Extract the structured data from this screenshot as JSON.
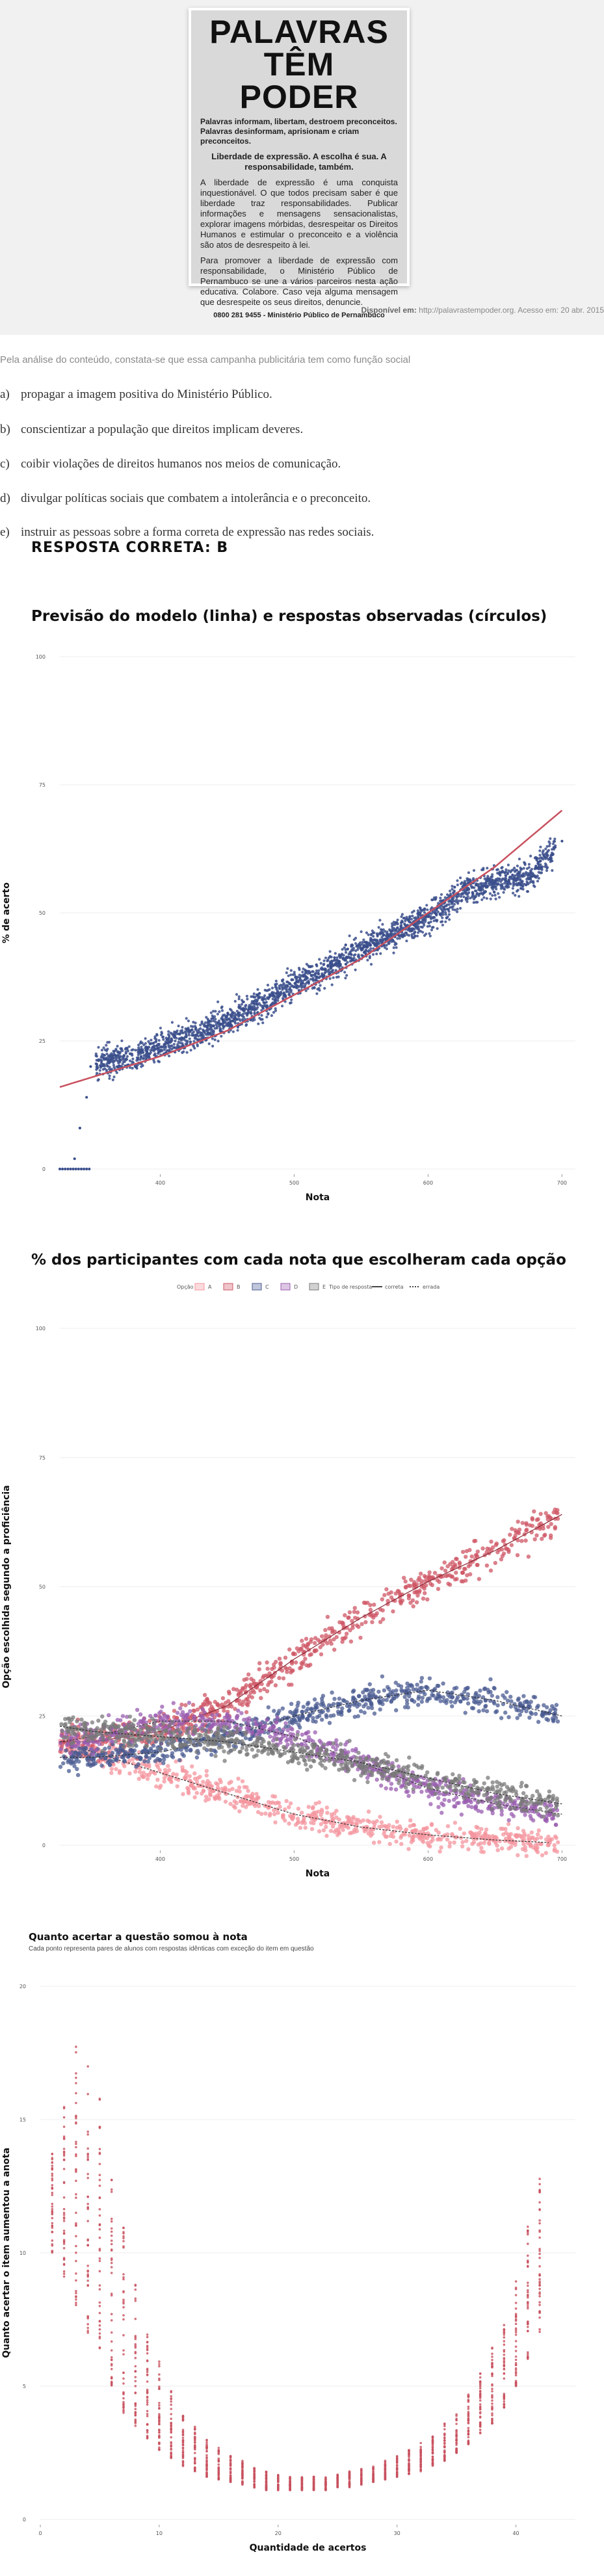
{
  "poster": {
    "headline_1": "PALAVRAS",
    "headline_2": "TÊM PODER",
    "tagline": "Palavras informam, libertam, destroem preconceitos. Palavras desinformam, aprisionam e criam preconceitos.",
    "emphasis": "Liberdade de expressão. A escolha é sua. A responsabilidade, também.",
    "body_1": "A liberdade de expressão é uma conquista inquestionável. O que todos precisam saber é que liberdade traz responsabilidades. Publicar informações e mensagens sensacionalistas, explorar imagens mórbidas, desrespeitar os Direitos Humanos e estimular o preconceito e a violência são atos de desrespeito à lei.",
    "body_2": "Para promover a liberdade de expressão com responsabilidade, o Ministério Público de Pernambuco se une a vários parceiros nesta ação educativa. Colabore. Caso veja alguma mensagem que desrespeite os seus direitos, denuncie.",
    "footer": "0800 281 9455 - Ministério Público de Pernambuco"
  },
  "source": {
    "label": "Disponível em:",
    "text": "http://palavrastempoder.org. Acesso em: 20 abr. 2015"
  },
  "question": {
    "intro": "Pela análise do conteúdo, constata-se que essa campanha publicitária tem como função social",
    "options": [
      {
        "letter": "a)",
        "text": "propagar a imagem positiva do Ministério Público."
      },
      {
        "letter": "b)",
        "text": "conscientizar a população que direitos implicam deveres."
      },
      {
        "letter": "c)",
        "text": "coibir violações de direitos humanos nos meios de comunicação."
      },
      {
        "letter": "d)",
        "text": "divulgar políticas sociais que combatem a intolerância e o preconceito."
      },
      {
        "letter": "e)",
        "text": "instruir as pessoas sobre a forma correta de expressão nas redes sociais."
      }
    ],
    "answer": "RESPOSTA CORRETA: B"
  },
  "chart_data": [
    {
      "type": "scatter",
      "title": "Previsão do modelo (linha) e respostas observadas (círculos)",
      "xlabel": "Nota",
      "ylabel": "% de acerto",
      "x_ticks": [
        400,
        500,
        600,
        700
      ],
      "y_ticks": [
        0,
        25,
        50,
        75,
        100
      ],
      "xlim": [
        325,
        710
      ],
      "ylim": [
        0,
        100
      ],
      "point_color": "#3b4f8c",
      "line_color": "#c8505e",
      "model_line": {
        "x": [
          325,
          400,
          450,
          500,
          550,
          600,
          650,
          700
        ],
        "y": [
          16,
          22,
          27,
          34,
          41,
          50,
          59,
          70
        ]
      },
      "observed_points": {
        "x": [
          325,
          330,
          335,
          340,
          345,
          350,
          360,
          380,
          400,
          425,
          450,
          475,
          500,
          525,
          550,
          575,
          600,
          625,
          650,
          675,
          700
        ],
        "y": [
          0,
          0,
          2,
          8,
          14,
          20,
          21,
          22,
          24,
          26,
          29,
          32,
          36,
          39,
          43,
          46,
          49,
          54,
          56,
          57,
          64
        ]
      }
    },
    {
      "type": "scatter",
      "title": "% dos participantes com cada nota que escolheram cada opção",
      "xlabel": "Nota",
      "ylabel": "Opção escolhida segundo a proficiência",
      "x_ticks": [
        400,
        500,
        600,
        700
      ],
      "y_ticks": [
        0,
        25,
        50,
        75,
        100
      ],
      "xlim": [
        325,
        710
      ],
      "ylim": [
        0,
        100
      ],
      "legend_title_option": "Opção",
      "legend_title_type": "Tipo de resposta",
      "legend_types": [
        "correta",
        "errada"
      ],
      "series": [
        {
          "name": "A",
          "color": "#f4949e",
          "x": [
            325,
            350,
            400,
            450,
            500,
            550,
            600,
            650,
            690
          ],
          "y": [
            20,
            18,
            14,
            10,
            6,
            3.5,
            2,
            1,
            0.5
          ]
        },
        {
          "name": "B",
          "color": "#cf5766",
          "x": [
            325,
            350,
            400,
            450,
            500,
            550,
            600,
            650,
            700
          ],
          "y": [
            20,
            20,
            22,
            27,
            36,
            44,
            51,
            57,
            64
          ]
        },
        {
          "name": "C",
          "color": "#4a5b91",
          "x": [
            325,
            350,
            400,
            450,
            500,
            550,
            600,
            650,
            700
          ],
          "y": [
            17,
            17,
            18,
            21,
            25,
            28,
            30,
            28,
            25
          ]
        },
        {
          "name": "D",
          "color": "#9a5db0",
          "x": [
            325,
            350,
            400,
            450,
            500,
            550,
            600,
            650,
            700
          ],
          "y": [
            20,
            21,
            24,
            24,
            21,
            16,
            11,
            8,
            6
          ]
        },
        {
          "name": "E",
          "color": "#7a7a7a",
          "x": [
            325,
            350,
            400,
            450,
            500,
            550,
            600,
            650,
            700
          ],
          "y": [
            23,
            22,
            21,
            20,
            18,
            16,
            13,
            10,
            8
          ]
        }
      ]
    },
    {
      "type": "scatter",
      "title": "Quanto acertar a questão somou à nota",
      "subtitle": "Cada ponto representa pares de alunos com respostas idênticas com exceção do item em questão",
      "xlabel": "Quantidade de acertos",
      "ylabel": "Quanto acertar o item aumentou a anota",
      "x_ticks": [
        0,
        10,
        20,
        30,
        40
      ],
      "y_ticks": [
        0,
        5,
        10,
        15,
        20
      ],
      "xlim": [
        0,
        45
      ],
      "ylim": [
        0,
        20
      ],
      "point_color": "#c8505e",
      "x": [
        1,
        2,
        3,
        4,
        5,
        6,
        7,
        8,
        9,
        10,
        11,
        12,
        13,
        14,
        15,
        16,
        17,
        18,
        19,
        20,
        21,
        22,
        23,
        24,
        25,
        26,
        27,
        28,
        29,
        30,
        31,
        32,
        33,
        34,
        35,
        36,
        37,
        38,
        39,
        40,
        41,
        42
      ],
      "y_min": [
        10,
        9,
        8,
        7,
        6,
        5,
        4,
        3.5,
        3,
        2.6,
        2.3,
        2,
        1.8,
        1.6,
        1.5,
        1.4,
        1.3,
        1.2,
        1.1,
        1.1,
        1.1,
        1.1,
        1.1,
        1.1,
        1.2,
        1.2,
        1.3,
        1.4,
        1.5,
        1.6,
        1.7,
        1.8,
        2,
        2.2,
        2.5,
        2.8,
        3.2,
        3.6,
        4.2,
        5,
        6,
        7
      ],
      "y_max": [
        14,
        16,
        18,
        17,
        16,
        13,
        11,
        9,
        7,
        6,
        5,
        4,
        3.5,
        3,
        2.7,
        2.4,
        2.2,
        2.0,
        1.8,
        1.7,
        1.6,
        1.6,
        1.6,
        1.6,
        1.7,
        1.8,
        1.9,
        2,
        2.2,
        2.4,
        2.6,
        2.9,
        3.2,
        3.6,
        4.1,
        4.7,
        5.5,
        6.5,
        7.5,
        9,
        11,
        13
      ]
    }
  ]
}
